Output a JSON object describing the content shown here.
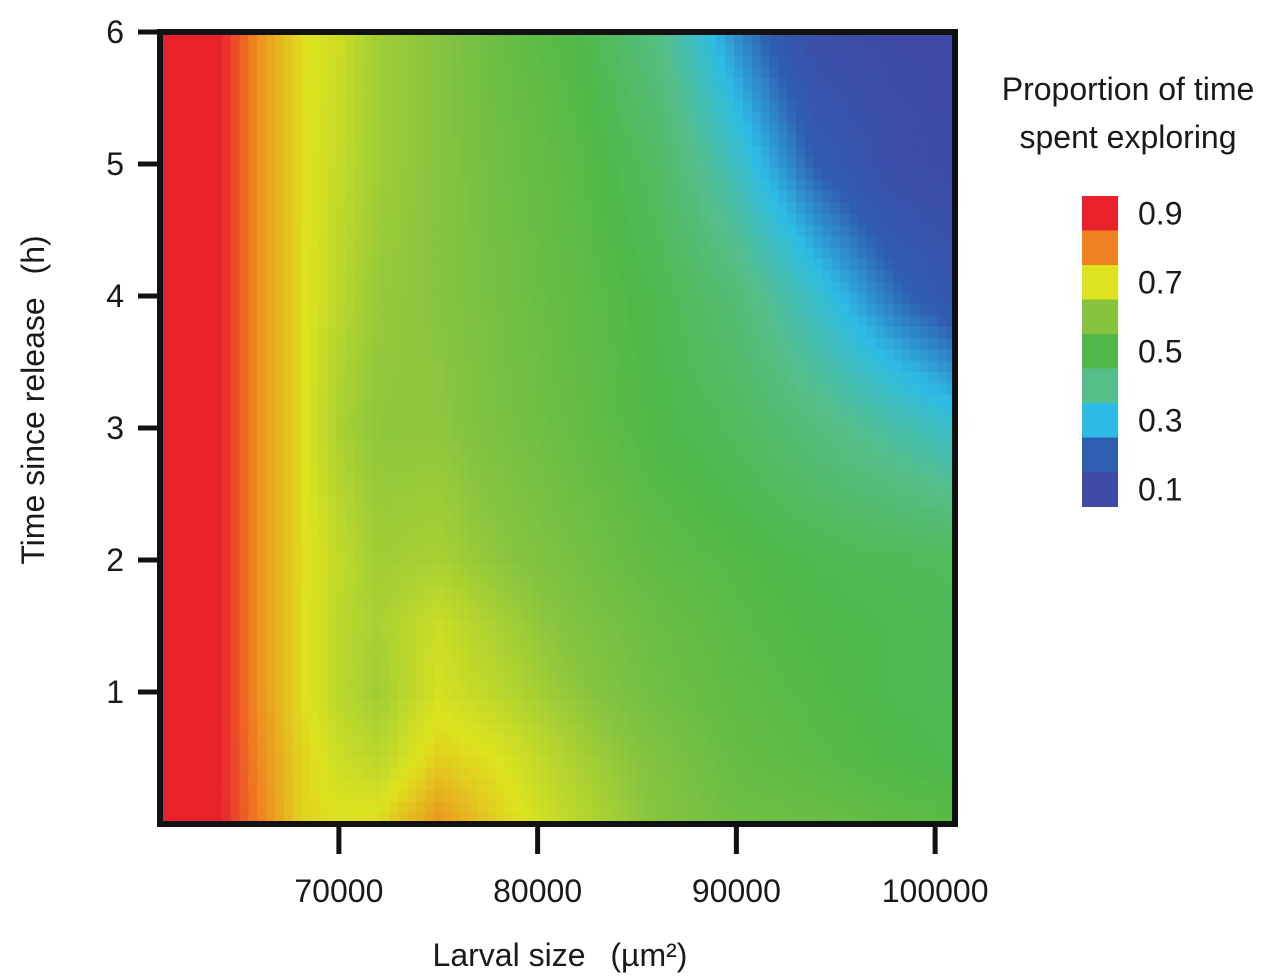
{
  "chart_data": {
    "type": "heatmap",
    "title": "",
    "xlabel": "Larval size",
    "xlabel_unit": "(µm²)",
    "ylabel": "Time since release",
    "ylabel_unit": "(h)",
    "xlim": [
      61000,
      101000
    ],
    "ylim": [
      0,
      6
    ],
    "x_ticks": [
      70000,
      80000,
      90000,
      100000
    ],
    "x_tick_labels": [
      "70000",
      "80000",
      "90000",
      "100000"
    ],
    "y_ticks": [
      1,
      2,
      3,
      4,
      5,
      6
    ],
    "y_tick_labels": [
      "1",
      "2",
      "3",
      "4",
      "5",
      "6"
    ],
    "grid": false,
    "legend": {
      "title_lines": [
        "Proportion of time",
        "spent exploring"
      ],
      "placement": "right",
      "levels": [
        {
          "value": 0.9,
          "color": "#e8212b",
          "label": "0.9"
        },
        {
          "value": 0.8,
          "color": "#ef8120",
          "label": ""
        },
        {
          "value": 0.7,
          "color": "#dde31e",
          "label": "0.7"
        },
        {
          "value": 0.6,
          "color": "#86c440",
          "label": ""
        },
        {
          "value": 0.5,
          "color": "#4fb848",
          "label": "0.5"
        },
        {
          "value": 0.4,
          "color": "#55bf8a",
          "label": ""
        },
        {
          "value": 0.3,
          "color": "#2ebce6",
          "label": "0.3"
        },
        {
          "value": 0.2,
          "color": "#2f5db0",
          "label": ""
        },
        {
          "value": 0.1,
          "color": "#3e4aa6",
          "label": "0.1"
        }
      ]
    },
    "grid_x": [
      61000,
      64000,
      66000,
      68000,
      70000,
      72000,
      75000,
      78000,
      82000,
      86000,
      90000,
      94000,
      98000,
      101000
    ],
    "grid_y": [
      0,
      0.5,
      1,
      1.5,
      2,
      3,
      4,
      5,
      6
    ],
    "z": [
      [
        0.93,
        0.9,
        0.8,
        0.72,
        0.7,
        0.71,
        0.78,
        0.72,
        0.66,
        0.6,
        0.56,
        0.55,
        0.53,
        0.52
      ],
      [
        0.93,
        0.9,
        0.79,
        0.72,
        0.68,
        0.66,
        0.72,
        0.7,
        0.64,
        0.59,
        0.54,
        0.52,
        0.5,
        0.49
      ],
      [
        0.93,
        0.9,
        0.78,
        0.71,
        0.66,
        0.63,
        0.69,
        0.66,
        0.61,
        0.56,
        0.53,
        0.51,
        0.49,
        0.48
      ],
      [
        0.93,
        0.9,
        0.78,
        0.71,
        0.66,
        0.64,
        0.68,
        0.64,
        0.59,
        0.55,
        0.52,
        0.5,
        0.49,
        0.48
      ],
      [
        0.93,
        0.9,
        0.78,
        0.71,
        0.67,
        0.63,
        0.64,
        0.61,
        0.57,
        0.53,
        0.51,
        0.49,
        0.48,
        0.47
      ],
      [
        0.93,
        0.9,
        0.78,
        0.71,
        0.64,
        0.61,
        0.61,
        0.58,
        0.54,
        0.5,
        0.47,
        0.42,
        0.37,
        0.33
      ],
      [
        0.93,
        0.9,
        0.78,
        0.71,
        0.66,
        0.62,
        0.6,
        0.57,
        0.53,
        0.49,
        0.43,
        0.33,
        0.22,
        0.16
      ],
      [
        0.93,
        0.9,
        0.78,
        0.71,
        0.67,
        0.63,
        0.6,
        0.56,
        0.52,
        0.46,
        0.34,
        0.2,
        0.12,
        0.1
      ],
      [
        0.93,
        0.9,
        0.78,
        0.71,
        0.68,
        0.63,
        0.6,
        0.55,
        0.5,
        0.41,
        0.25,
        0.12,
        0.1,
        0.1
      ]
    ]
  }
}
